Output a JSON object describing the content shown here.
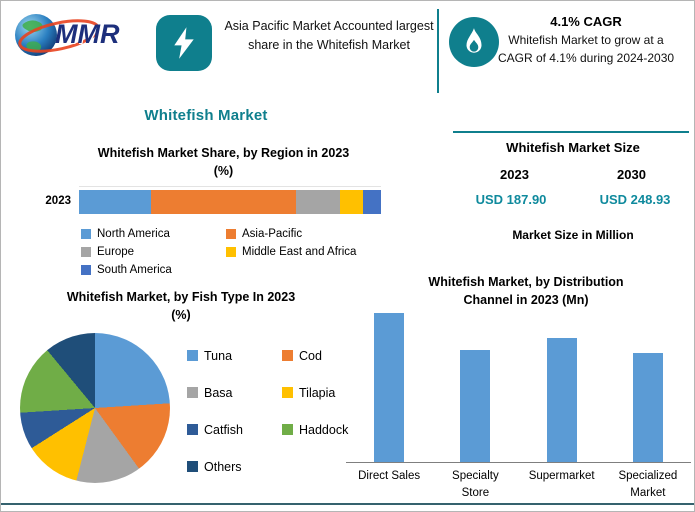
{
  "header": {
    "logo_text": "MMR",
    "highlight1": {
      "text": "Asia Pacific Market Accounted largest share in the Whitefish Market"
    },
    "highlight2": {
      "title": "4.1% CAGR",
      "text": "Whitefish Market to grow at a CAGR of 4.1% during 2024-2030"
    }
  },
  "page_title": "Whitefish Market",
  "market_size": {
    "title": "Whitefish Market Size",
    "columns": [
      {
        "year": "2023",
        "value": "USD 187.90"
      },
      {
        "year": "2030",
        "value": "USD 248.93"
      }
    ],
    "note": "Market Size in Million"
  },
  "colors": {
    "accent_teal": "#0F7F8D",
    "value_teal": "#0F8A9D",
    "bar_blue": "#5B9BD5"
  },
  "chart_data": [
    {
      "type": "bar",
      "subtype": "stacked-horizontal",
      "title": "Whitefish Market Share, by Region in 2023",
      "unit": "(%)",
      "categories": [
        "2023"
      ],
      "series": [
        {
          "name": "North America",
          "value": 24,
          "color": "#5B9BD5"
        },
        {
          "name": "Asia-Pacific",
          "value": 48,
          "color": "#ED7D31"
        },
        {
          "name": "Europe",
          "value": 14.5,
          "color": "#A5A5A5"
        },
        {
          "name": "Middle East and Africa",
          "value": 7.5,
          "color": "#FFC000"
        },
        {
          "name": "South America",
          "value": 6,
          "color": "#4472C4"
        }
      ],
      "legend_position": "bottom",
      "xlim": [
        0,
        100
      ]
    },
    {
      "type": "pie",
      "title": "Whitefish Market, by Fish Type In 2023",
      "unit": "(%)",
      "slices": [
        {
          "name": "Tuna",
          "value": 24,
          "color": "#5B9BD5"
        },
        {
          "name": "Cod",
          "value": 16,
          "color": "#ED7D31"
        },
        {
          "name": "Basa",
          "value": 14,
          "color": "#A5A5A5"
        },
        {
          "name": "Tilapia",
          "value": 12,
          "color": "#FFC000"
        },
        {
          "name": "Catfish",
          "value": 8,
          "color": "#2E5B97"
        },
        {
          "name": "Haddock",
          "value": 15,
          "color": "#70AD47"
        },
        {
          "name": "Others",
          "value": 11,
          "color": "#1F4E79"
        }
      ],
      "legend_position": "right"
    },
    {
      "type": "bar",
      "title": "Whitefish Market, by Distribution Channel in 2023 (Mn)",
      "categories": [
        "Direct Sales",
        "Specialty Store",
        "Supermarket",
        "Specialized Market"
      ],
      "values": [
        100,
        75,
        83,
        73
      ],
      "ylim": [
        0,
        108
      ],
      "bar_color": "#5B9BD5",
      "legend_position": "none"
    }
  ]
}
